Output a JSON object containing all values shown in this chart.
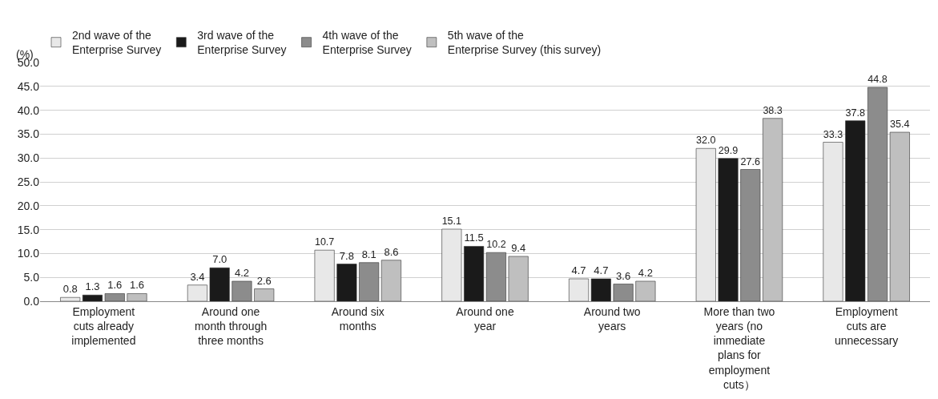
{
  "chart_data": {
    "type": "bar",
    "ylabel": "(%)",
    "categories": [
      "Employment cuts already implemented",
      "Around one month through three months",
      "Around six months",
      "Around one year",
      "Around two years",
      "More than two years (no immediate plans for employment cuts）",
      "Employment cuts are unnecessary"
    ],
    "series": [
      {
        "name": "2nd wave of the Enterprise Survey",
        "color": "#e8e8e8",
        "values": [
          0.8,
          3.4,
          10.7,
          15.1,
          4.7,
          32.0,
          33.3
        ],
        "value_labels": [
          "0.8",
          "3.4",
          "10.7",
          "15.1",
          "4.7",
          "32.0",
          "33.3"
        ]
      },
      {
        "name": "3rd wave of the Enterprise Survey",
        "color": "#1a1a1a",
        "values": [
          1.3,
          7.0,
          7.8,
          11.5,
          4.7,
          29.9,
          37.8
        ],
        "value_labels": [
          "1.3",
          "7.0",
          "7.8",
          "11.5",
          "4.7",
          "29.9",
          "37.8"
        ]
      },
      {
        "name": "4th wave of the Enterprise Survey",
        "color": "#8c8c8c",
        "values": [
          1.6,
          4.2,
          8.1,
          10.2,
          3.6,
          27.6,
          44.8
        ],
        "value_labels": [
          "1.6",
          "4.2",
          "8.1",
          "10.2",
          "3.6",
          "27.6",
          "44.8"
        ]
      },
      {
        "name": "5th wave of the Enterprise Survey (this survey)",
        "color": "#bfbfbf",
        "values": [
          1.6,
          2.6,
          8.6,
          9.4,
          4.2,
          38.3,
          35.4
        ],
        "value_labels": [
          "1.6",
          "2.6",
          "8.6",
          "9.4",
          "4.2",
          "38.3",
          "35.4"
        ]
      }
    ],
    "ylim": [
      0,
      50
    ],
    "yticks": [
      {
        "value": 0,
        "label": "0.0"
      },
      {
        "value": 5,
        "label": "5.0"
      },
      {
        "value": 10,
        "label": "10.0"
      },
      {
        "value": 15,
        "label": "15.0"
      },
      {
        "value": 20,
        "label": "20.0"
      },
      {
        "value": 25,
        "label": "25.0"
      },
      {
        "value": 30,
        "label": "30.0"
      },
      {
        "value": 35,
        "label": "35.0"
      },
      {
        "value": 40,
        "label": "40.0"
      },
      {
        "value": 45,
        "label": "45.0"
      },
      {
        "value": 50,
        "label": "50.0"
      }
    ],
    "grid": "y",
    "legend": "top left"
  }
}
